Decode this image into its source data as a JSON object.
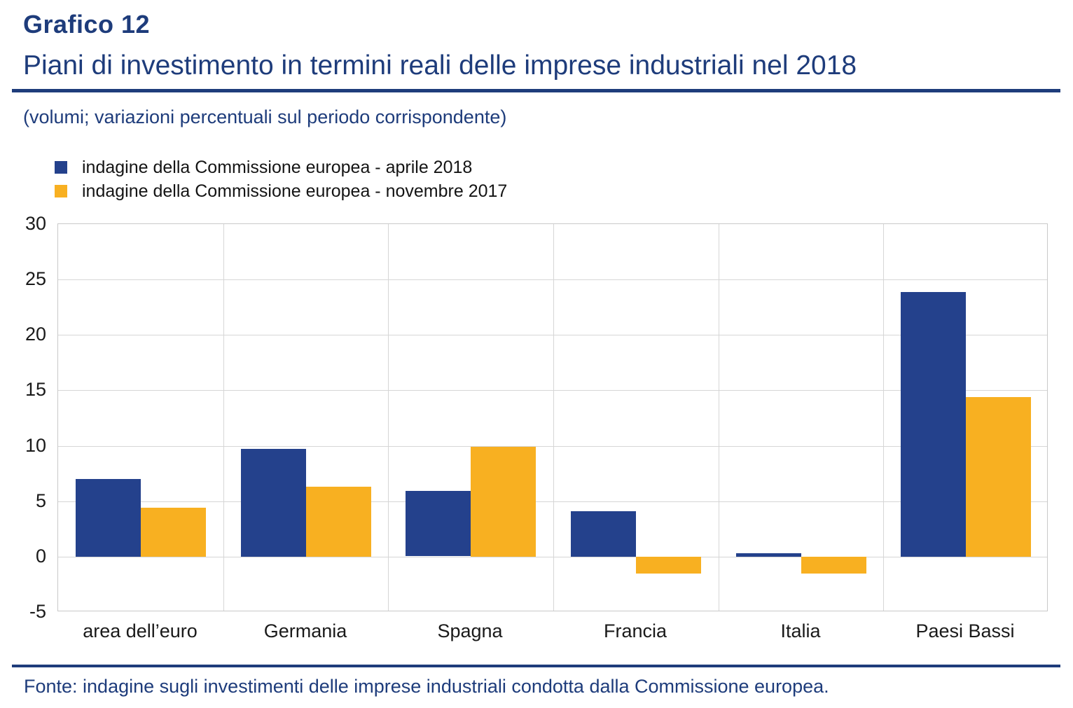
{
  "header": {
    "kicker": "Grafico 12",
    "title": "Piani di investimento in termini reali delle imprese industriali nel 2018",
    "subtitle": "(volumi; variazioni percentuali sul periodo corrispondente)"
  },
  "colors": {
    "heading_blue": "#1E3C7B",
    "series_blue": "#24418C",
    "series_yellow": "#F8B021",
    "gridline_gray": "#D6D6D6",
    "plot_border_gray": "#C9C9C9"
  },
  "chart_data": {
    "type": "bar",
    "categories": [
      "area dell’euro",
      "Germania",
      "Spagna",
      "Francia",
      "Italia",
      "Paesi Bassi"
    ],
    "series": [
      {
        "name": "indagine della Commissione europea - aprile 2018",
        "color": "#24418C",
        "values": [
          7.0,
          9.7,
          5.9,
          4.1,
          0.3,
          23.9
        ]
      },
      {
        "name": "indagine della Commissione europea - novembre 2017",
        "color": "#F8B021",
        "values": [
          4.4,
          6.3,
          9.9,
          -1.5,
          -1.5,
          14.4
        ]
      }
    ],
    "ylim": [
      -5,
      30
    ],
    "yticks": [
      30,
      25,
      20,
      15,
      10,
      5,
      0,
      -5
    ],
    "grid": true,
    "legend_position": "top-left",
    "xlabel": "",
    "ylabel": ""
  },
  "footer": {
    "text": "Fonte: indagine sugli investimenti delle imprese industriali condotta dalla Commissione europea."
  }
}
